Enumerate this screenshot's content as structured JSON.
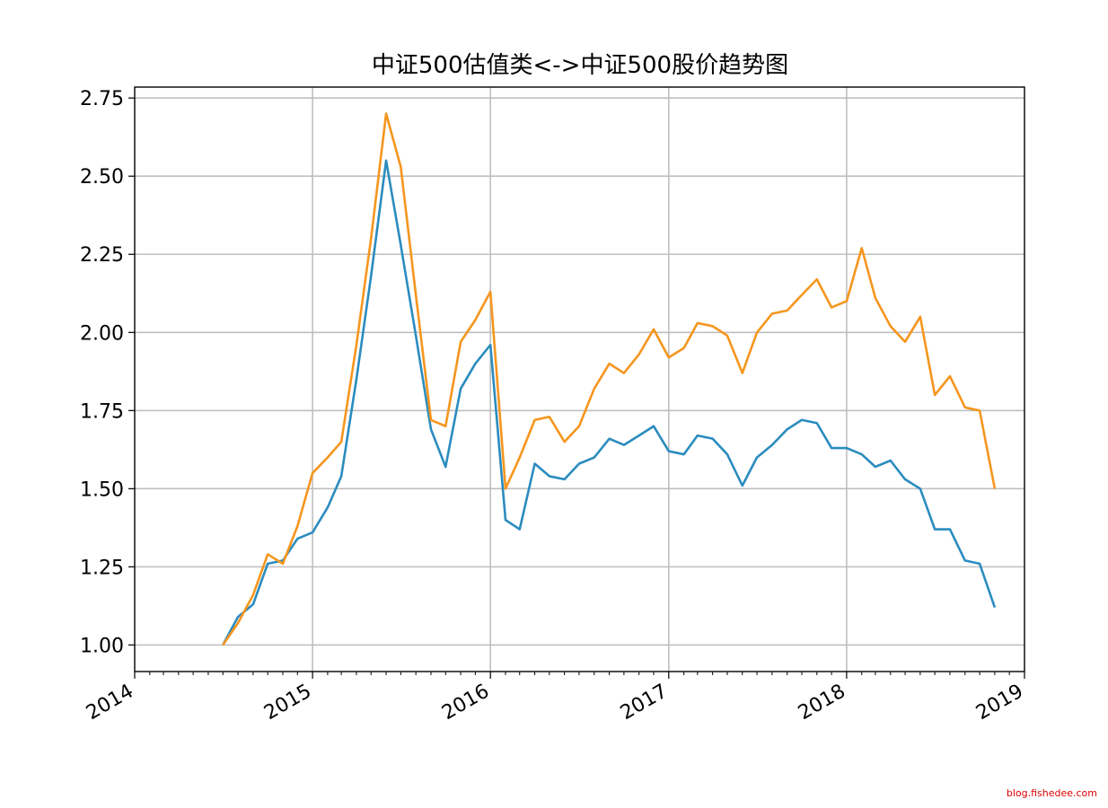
{
  "chart_data": {
    "type": "line",
    "title": "中证500估值类<->中证500股价趋势图",
    "xlabel": "",
    "ylabel": "",
    "xlim": [
      "2014-01-01",
      "2019-01-01"
    ],
    "ylim": [
      0.915,
      2.785
    ],
    "x_tick_labels": [
      "2014",
      "2015",
      "2016",
      "2017",
      "2018",
      "2019"
    ],
    "y_tick_labels": [
      "1.00",
      "1.25",
      "1.50",
      "1.75",
      "2.00",
      "2.25",
      "2.50",
      "2.75"
    ],
    "grid": true,
    "legend": "none",
    "x": [
      "2014-07-01",
      "2014-08-01",
      "2014-09-01",
      "2014-10-01",
      "2014-11-01",
      "2014-12-01",
      "2015-01-01",
      "2015-02-01",
      "2015-03-01",
      "2015-04-01",
      "2015-05-01",
      "2015-06-01",
      "2015-07-01",
      "2015-08-01",
      "2015-09-01",
      "2015-10-01",
      "2015-11-01",
      "2015-12-01",
      "2016-01-01",
      "2016-02-01",
      "2016-03-01",
      "2016-04-01",
      "2016-05-01",
      "2016-06-01",
      "2016-07-01",
      "2016-08-01",
      "2016-09-01",
      "2016-10-01",
      "2016-11-01",
      "2016-12-01",
      "2017-01-01",
      "2017-02-01",
      "2017-03-01",
      "2017-04-01",
      "2017-05-01",
      "2017-06-01",
      "2017-07-01",
      "2017-08-01",
      "2017-09-01",
      "2017-10-01",
      "2017-11-01",
      "2017-12-01",
      "2018-01-01",
      "2018-02-01",
      "2018-03-01",
      "2018-04-01",
      "2018-05-01",
      "2018-06-01",
      "2018-07-01",
      "2018-08-01",
      "2018-09-01",
      "2018-10-01",
      "2018-11-01"
    ],
    "series": [
      {
        "color": "#2b8cbe",
        "values": [
          1.0,
          1.09,
          1.13,
          1.26,
          1.27,
          1.34,
          1.36,
          1.44,
          1.54,
          1.85,
          2.18,
          2.55,
          2.28,
          1.99,
          1.69,
          1.57,
          1.82,
          1.9,
          1.96,
          1.4,
          1.37,
          1.58,
          1.54,
          1.53,
          1.58,
          1.6,
          1.66,
          1.64,
          1.67,
          1.7,
          1.62,
          1.61,
          1.67,
          1.66,
          1.61,
          1.51,
          1.6,
          1.64,
          1.69,
          1.72,
          1.71,
          1.63,
          1.63,
          1.61,
          1.57,
          1.59,
          1.53,
          1.5,
          1.37,
          1.37,
          1.27,
          1.26,
          1.12
        ]
      },
      {
        "color": "#f5961e",
        "values": [
          1.0,
          1.07,
          1.16,
          1.29,
          1.26,
          1.38,
          1.55,
          1.6,
          1.65,
          1.96,
          2.3,
          2.7,
          2.53,
          2.12,
          1.72,
          1.7,
          1.97,
          2.04,
          2.13,
          1.5,
          1.6,
          1.72,
          1.73,
          1.65,
          1.7,
          1.82,
          1.9,
          1.87,
          1.93,
          2.01,
          1.92,
          1.95,
          2.03,
          2.02,
          1.99,
          1.87,
          2.0,
          2.06,
          2.07,
          2.12,
          2.17,
          2.08,
          2.1,
          2.27,
          2.11,
          2.02,
          1.97,
          2.05,
          1.8,
          1.86,
          1.76,
          1.75,
          1.5
        ]
      }
    ]
  },
  "watermark": "blog.fishedee.com"
}
